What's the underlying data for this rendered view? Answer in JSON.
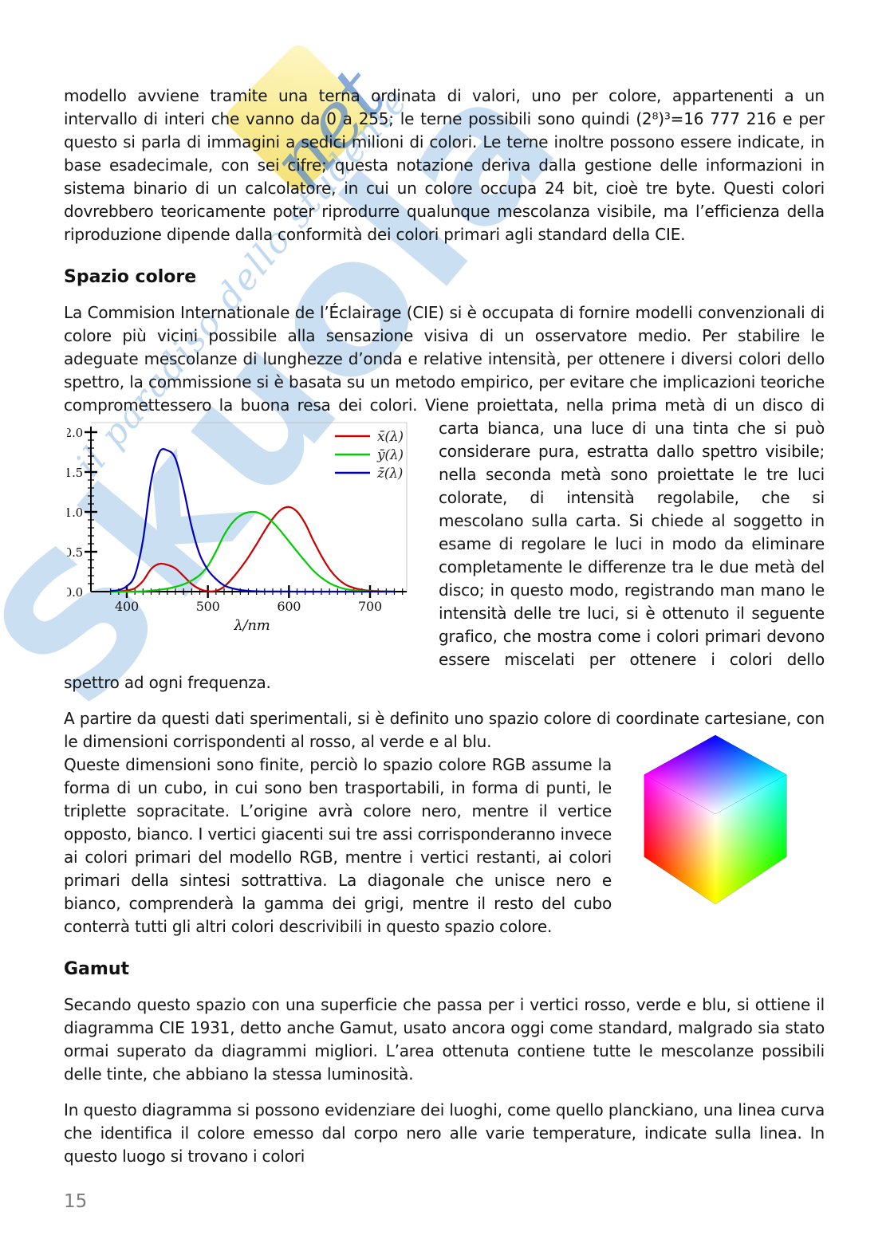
{
  "page": {
    "number": "15"
  },
  "watermark": {
    "brand": "Skuola",
    "script": "net",
    "slogan": "il paradiso dello studente",
    "note_color": "#f9eb93",
    "brand_color": "#7eb0e1"
  },
  "content": {
    "para_intro": "modello avviene tramite una terna ordinata di valori, uno per colore, appartenenti a un intervallo di interi che vanno da 0 a 255; le terne possibili sono quindi (2⁸)³=16 777 216 e per questo si parla di immagini a sedici milioni di colori. Le terne inoltre possono essere indicate, in base esadecimale, con sei cifre; questa notazione deriva dalla gestione delle informazioni in sistema binario di un calcolatore, in cui un colore occupa 24 bit, cioè tre byte. Questi colori dovrebbero teoricamente poter riprodurre qualunque mescolanza visibile, ma l’efficienza della riproduzione dipende dalla conformità dei colori primari agli standard della CIE.",
    "heading_spazio": "Spazio colore",
    "spazio_before_chart": "La Commision Internationale de l’Éclairage (CIE) si è occupata di fornire modelli convenzionali di colore più vicini possibile alla sensazione visiva di un osservatore medio. Per stabilire le adeguate mescolanze di lunghezze d’onda e relative intensità, per ottenere i diversi colori dello spettro, la commissione si è basata su un metodo empirico, per evitare che implicazioni teoriche compromettessero la buona resa dei colori. Viene",
    "spazio_after_chart": "proiettata, nella prima metà di un disco di carta bianca, una luce di una tinta che si può considerare pura, estratta dallo spettro visibile; nella seconda metà sono proiettate le tre luci colorate, di intensità regolabile, che si mescolano sulla carta. Si chiede al soggetto in esame di regolare le luci in modo da eliminare completamente le differenze tra le due metà del disco; in questo modo, registrando man mano le intensità delle tre luci, si è ottenuto il seguente grafico, che mostra come i colori primari devono essere miscelati per ottenere i colori dello spettro ad ogni frequenza.",
    "rgb_before_cube": "A partire da questi dati sperimentali, si è definito uno spazio colore di coordinate cartesiane, con le dimensioni corrispondenti al rosso, al verde e al blu.",
    "rgb_after_cube": "Queste dimensioni sono finite, perciò lo spazio colore RGB assume la forma di un cubo, in cui sono ben trasportabili, in forma di punti, le triplette sopracitate. L’origine avrà colore nero, mentre il vertice opposto, bianco. I vertici giacenti sui tre assi corrisponderanno invece ai colori primari del modello RGB, mentre i vertici restanti, ai colori primari della sintesi sottrattiva. La diagonale che unisce nero e bianco, comprenderà la gamma dei grigi, mentre il resto del cubo conterrà tutti gli altri colori descrivibili in questo spazio colore.",
    "heading_gamut": "Gamut",
    "gamut_para1": "Secando questo spazio con una superficie che passa per i vertici rosso, verde e blu, si ottiene il diagramma CIE 1931, detto anche Gamut, usato ancora oggi come standard, malgrado sia stato ormai superato da diagrammi migliori. L’area ottenuta contiene tutte le mescolanze possibili delle tinte, che abbiano la stessa luminosità.",
    "gamut_para2": "In questo diagramma si possono evidenziare dei luoghi, come quello planckiano, una linea curva che identifica il colore emesso dal corpo nero alle varie temperature, indicate sulla linea. In questo luogo si trovano i colori"
  },
  "figures": {
    "rgb_cube": {
      "corner_colors": [
        "magenta",
        "blue",
        "cyan",
        "white",
        "red",
        "green",
        "yellow"
      ]
    }
  },
  "chart_data": {
    "type": "line",
    "title": "",
    "xlabel": "λ/nm",
    "ylabel": "",
    "xlim": [
      368,
      746
    ],
    "ylim": [
      0,
      2.05
    ],
    "xticks": [
      400,
      500,
      600,
      700
    ],
    "yticks": [
      0.0,
      0.5,
      1.0,
      1.5,
      2.0
    ],
    "grid": false,
    "legend_position": "top-right",
    "x": [
      380,
      390,
      400,
      410,
      420,
      430,
      440,
      450,
      460,
      470,
      480,
      490,
      500,
      510,
      520,
      530,
      540,
      550,
      560,
      570,
      580,
      590,
      600,
      610,
      620,
      630,
      640,
      650,
      660,
      670,
      680,
      690,
      700,
      710,
      720,
      730
    ],
    "series": [
      {
        "name": "x̄(λ)",
        "label": "x̄(λ)",
        "color": "#cc0000",
        "values": [
          0.0014,
          0.0042,
          0.0143,
          0.0435,
          0.1344,
          0.2839,
          0.3483,
          0.3362,
          0.2908,
          0.1954,
          0.0956,
          0.032,
          0.0049,
          0.0093,
          0.0633,
          0.1655,
          0.2904,
          0.4334,
          0.5945,
          0.7621,
          0.9163,
          1.0263,
          1.0622,
          1.0026,
          0.8544,
          0.6424,
          0.4479,
          0.2835,
          0.1649,
          0.0874,
          0.0468,
          0.0227,
          0.0114,
          0.0058,
          0.0029,
          0.0014
        ]
      },
      {
        "name": "ȳ(λ)",
        "label": "ȳ(λ)",
        "color": "#00cc00",
        "values": [
          0.0,
          0.0001,
          0.0004,
          0.0012,
          0.004,
          0.0116,
          0.023,
          0.038,
          0.06,
          0.091,
          0.139,
          0.208,
          0.323,
          0.503,
          0.71,
          0.862,
          0.954,
          0.995,
          0.995,
          0.952,
          0.87,
          0.757,
          0.631,
          0.503,
          0.381,
          0.265,
          0.175,
          0.107,
          0.061,
          0.032,
          0.017,
          0.0082,
          0.0041,
          0.0021,
          0.001,
          0.0005
        ]
      },
      {
        "name": "z̄(λ)",
        "label": "z̄(λ)",
        "color": "#0000bb",
        "values": [
          0.0065,
          0.0201,
          0.0679,
          0.2074,
          0.6456,
          1.3856,
          1.7471,
          1.7721,
          1.6692,
          1.2876,
          0.813,
          0.4652,
          0.272,
          0.1582,
          0.0782,
          0.0422,
          0.0203,
          0.0087,
          0.0039,
          0.0021,
          0.0017,
          0.0011,
          0.0008,
          0.0003,
          0.0002,
          0.0,
          0.0,
          0.0,
          0.0,
          0.0,
          0.0,
          0.0,
          0.0,
          0.0,
          0.0,
          0.0
        ]
      }
    ]
  }
}
